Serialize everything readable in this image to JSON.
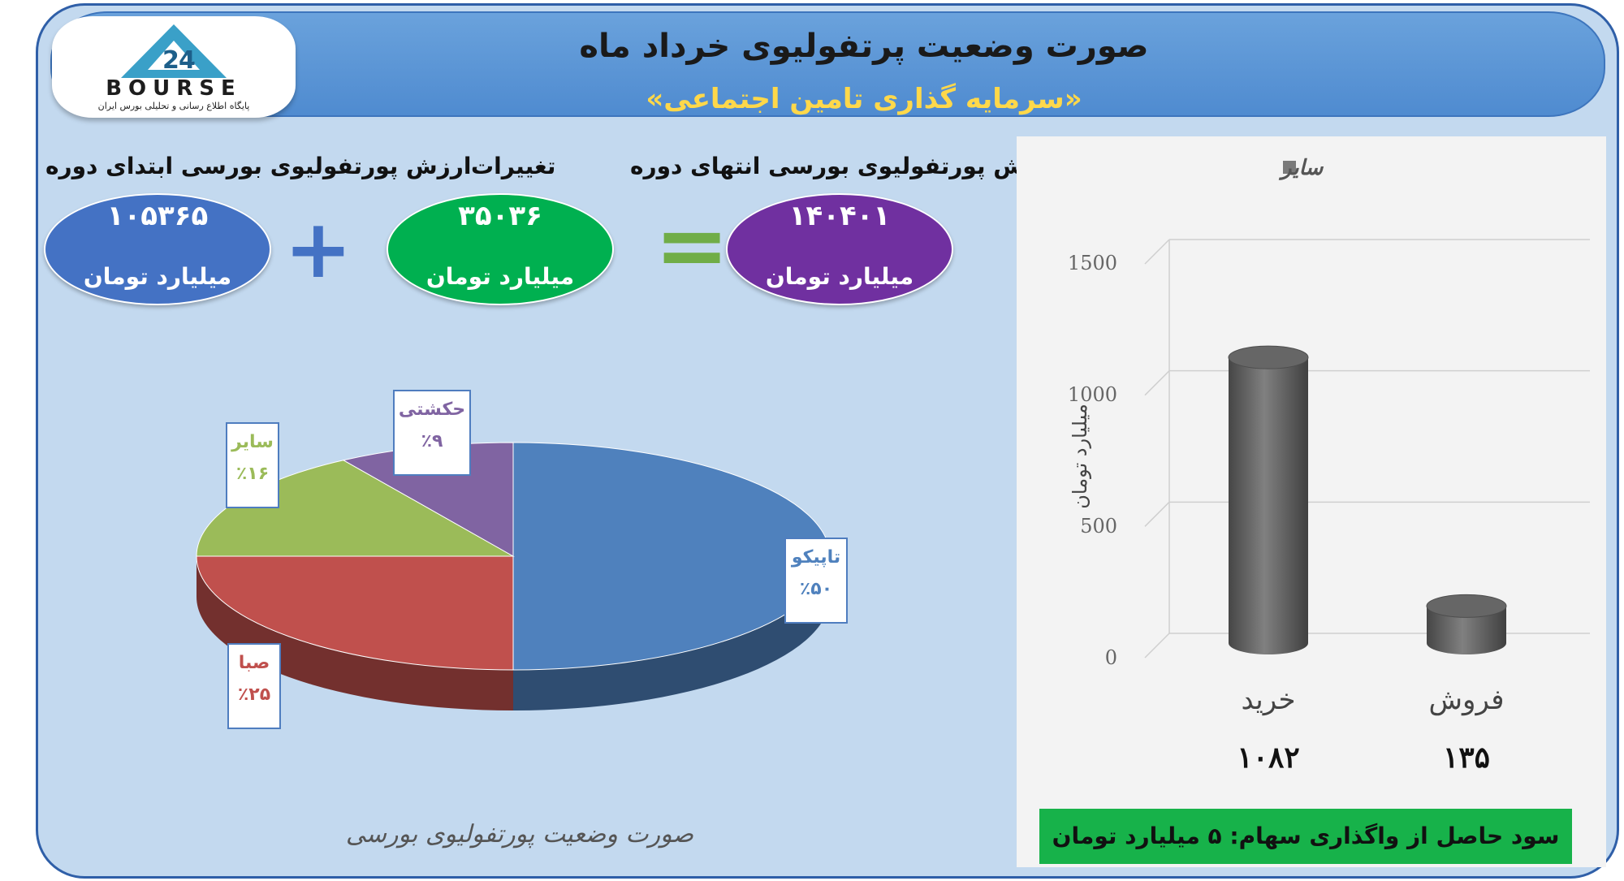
{
  "header": {
    "title": "صورت وضعیت پرتفولیوی خرداد ماه",
    "subtitle": "«سرمایه گذاری تامین اجتماعی»"
  },
  "logo": {
    "text": "BOURSE",
    "tagline": "پایگاه اطلاع رسانی و تحلیلی بورس ایران"
  },
  "summary": {
    "start": {
      "label": "ارزش پورتفولیوی بورسی ابتدای دوره",
      "value": "۱۰۵۳۶۵",
      "unit": "میلیارد تومان",
      "color": "#4472c4"
    },
    "change": {
      "label": "تغییرات",
      "value": "۳۵۰۳۶",
      "unit": "میلیارد تومان",
      "color": "#00b050"
    },
    "end": {
      "label": "ارزش پورتفولیوی بورسی انتهای دوره",
      "value": "۱۴۰۴۰۱",
      "unit": "میلیارد تومان",
      "color": "#7030a0"
    },
    "plus_color": "#4472c4",
    "equals_color": "#70ad47"
  },
  "chart_data": [
    {
      "type": "pie",
      "title": "صورت وضعیت پورتفولیوی بورسی",
      "slices": [
        {
          "name": "تاپیکو",
          "percent": 50,
          "label": "٪۵۰",
          "color": "#4f81bd"
        },
        {
          "name": "صبا",
          "percent": 25,
          "label": "٪۲۵",
          "color": "#c0504d"
        },
        {
          "name": "سایر",
          "percent": 16,
          "label": "٪۱۶",
          "color": "#9bbb59"
        },
        {
          "name": "حکشتی",
          "percent": 9,
          "label": "٪۹",
          "color": "#8064a2"
        }
      ]
    },
    {
      "type": "bar",
      "categories": [
        "خرید",
        "فروش"
      ],
      "values": [
        1082,
        135
      ],
      "value_labels": [
        "۱۰۸۲",
        "۱۳۵"
      ],
      "series": [
        {
          "name": "سایر",
          "values": [
            1082,
            135
          ],
          "color": "#808080"
        }
      ],
      "ylabel": "میلیارد تومان",
      "ylim": [
        0,
        1500
      ],
      "yticks": [
        0,
        500,
        1000,
        1500
      ],
      "legend": "top-right",
      "grid": true
    }
  ],
  "footer": {
    "banner": "سود حاصل از واگذاری سهام: ۵ میلیارد تومان"
  }
}
